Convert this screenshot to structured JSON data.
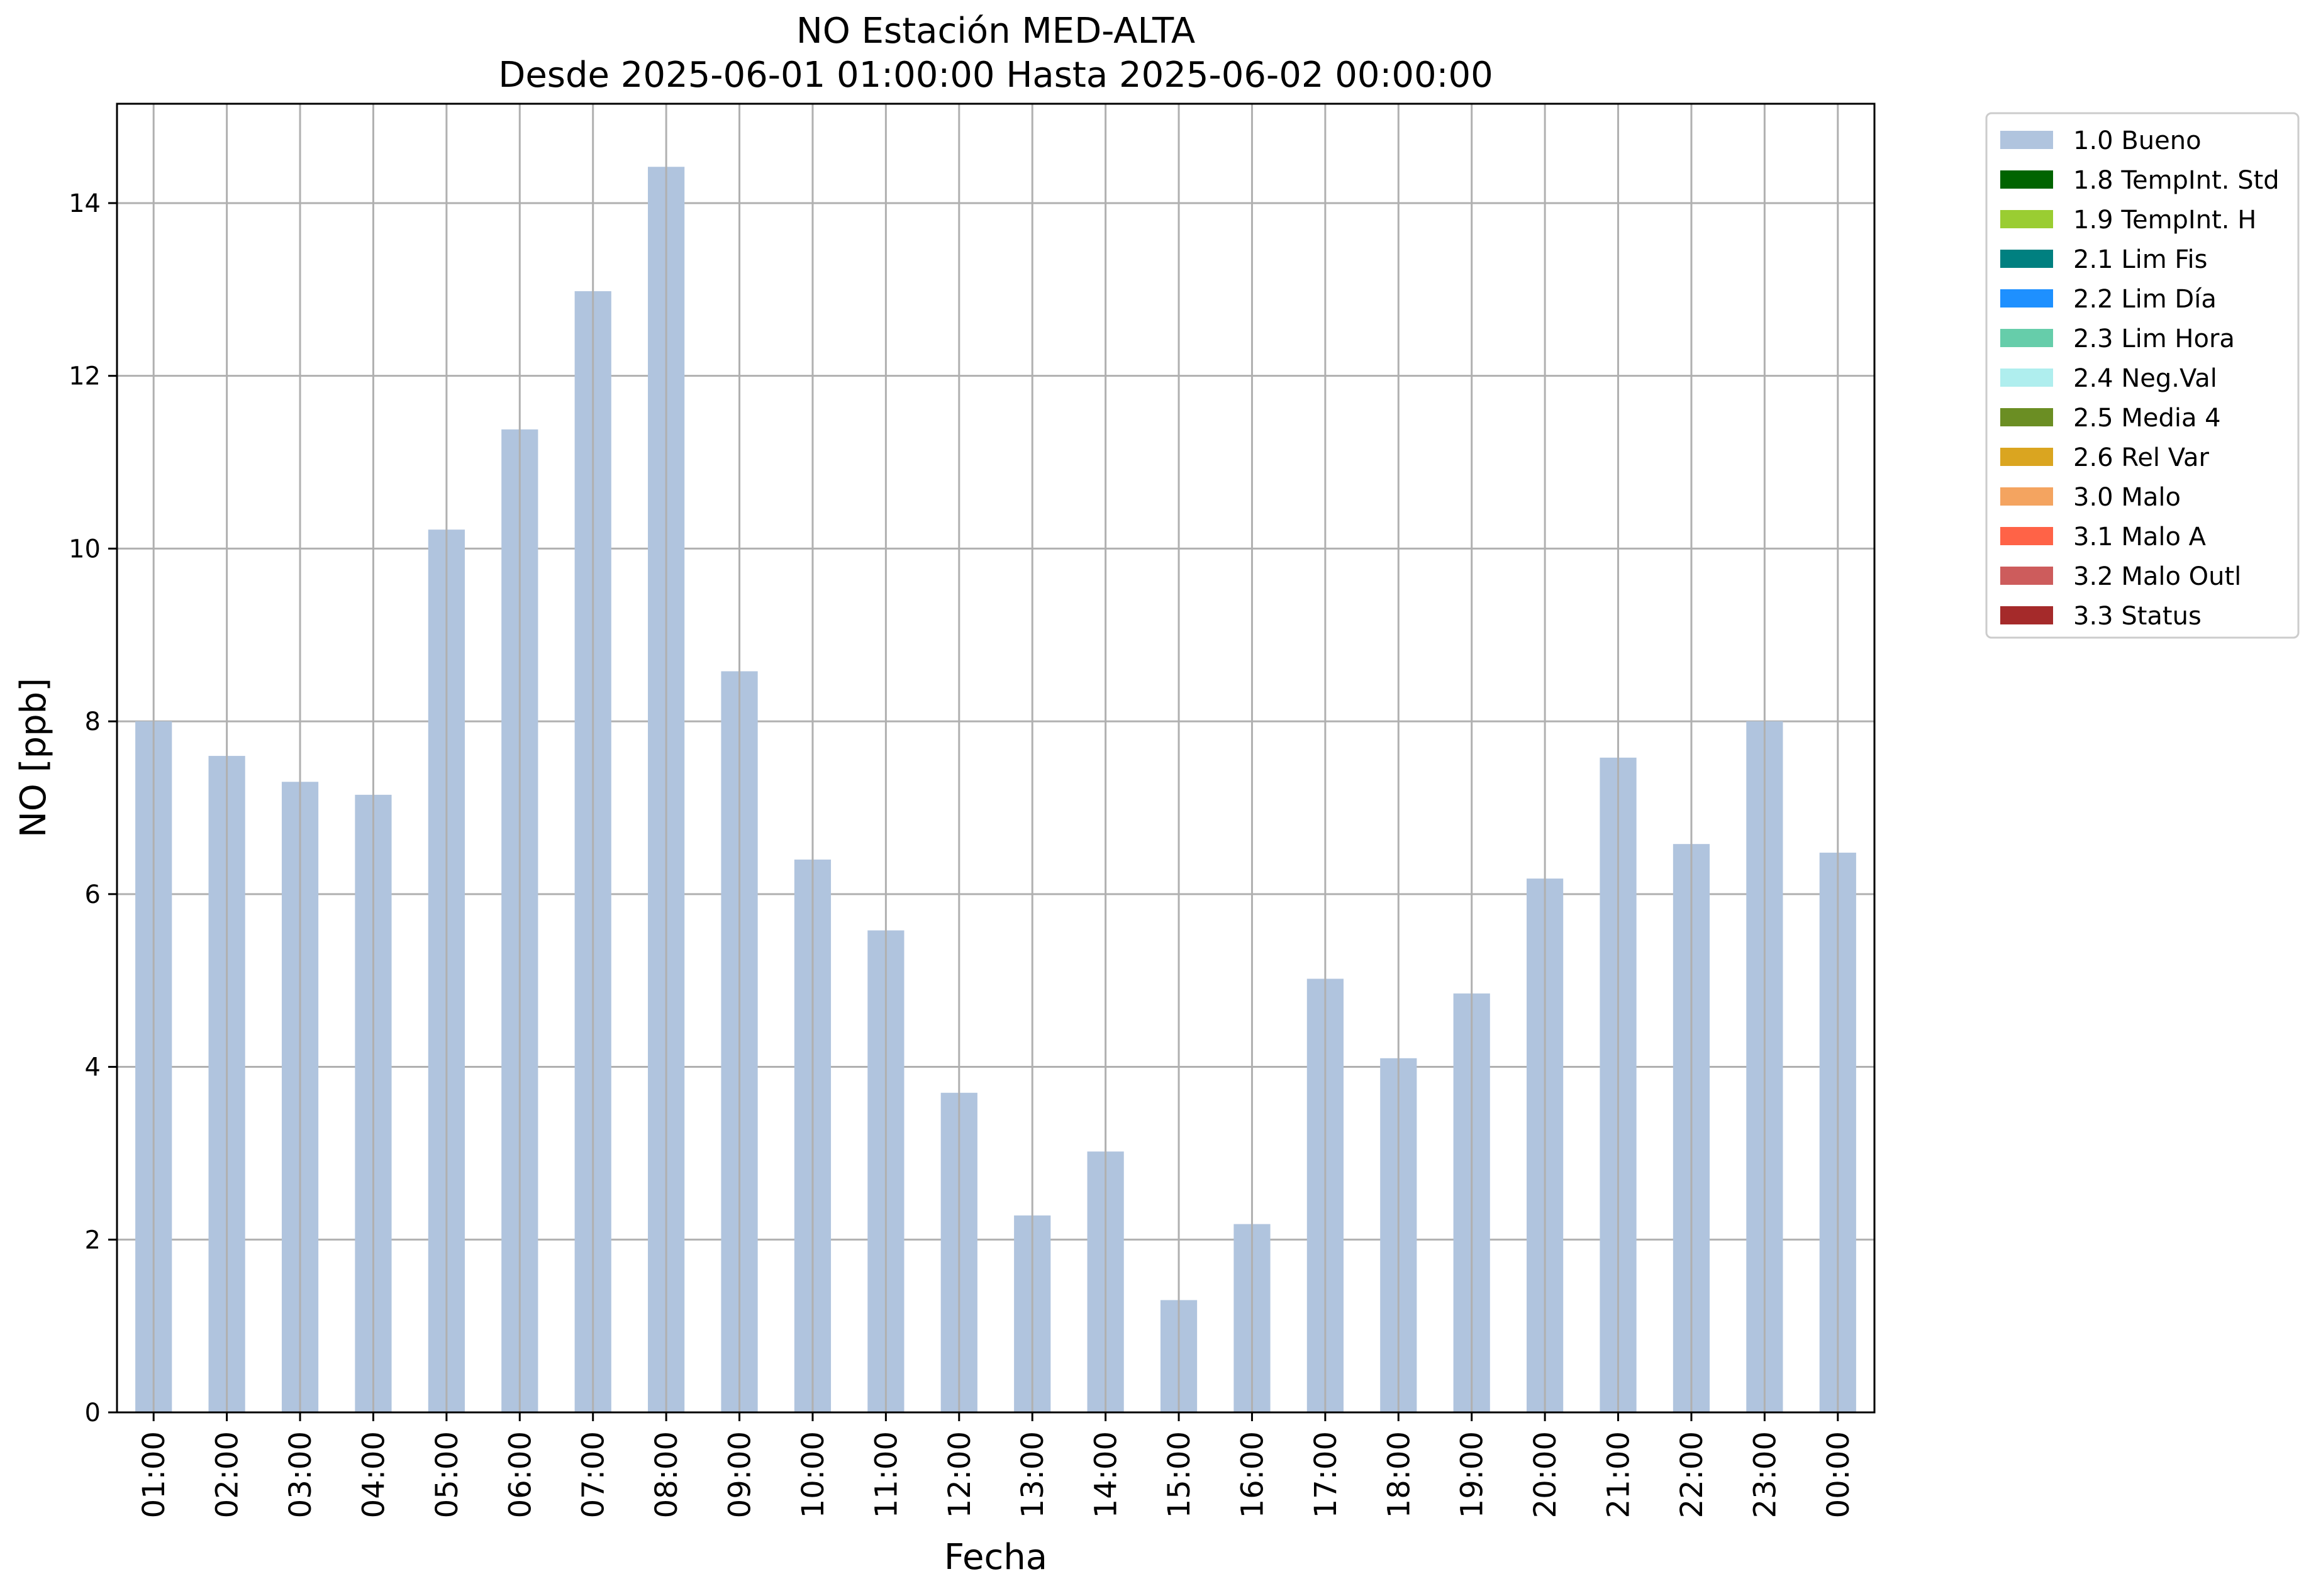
{
  "chart_data": {
    "type": "bar",
    "title_line1": "NO Estación MED-ALTA",
    "title_line2": "Desde 2025-06-01 01:00:00 Hasta 2025-06-02 00:00:00",
    "xlabel": "Fecha",
    "ylabel": "NO [ppb]",
    "ylim": [
      0,
      15.15
    ],
    "yticks": [
      0,
      2,
      4,
      6,
      8,
      10,
      12,
      14
    ],
    "grid": true,
    "legend_position": "outside right, top",
    "bar_color": "#b0c4de",
    "categories": [
      "01:00",
      "02:00",
      "03:00",
      "04:00",
      "05:00",
      "06:00",
      "07:00",
      "08:00",
      "09:00",
      "10:00",
      "11:00",
      "12:00",
      "13:00",
      "14:00",
      "15:00",
      "16:00",
      "17:00",
      "18:00",
      "19:00",
      "20:00",
      "21:00",
      "22:00",
      "23:00",
      "00:00"
    ],
    "series": [
      {
        "name": "1.0 Bueno",
        "values": [
          8.0,
          7.6,
          7.3,
          7.15,
          10.22,
          11.38,
          12.98,
          14.42,
          8.58,
          6.4,
          5.58,
          3.7,
          2.28,
          3.02,
          1.3,
          2.18,
          5.02,
          4.1,
          4.85,
          6.18,
          7.58,
          6.58,
          8.0,
          6.48
        ]
      }
    ],
    "legend": [
      {
        "label": "1.0 Bueno",
        "color": "#b0c4de"
      },
      {
        "label": "1.8 TempInt. Std",
        "color": "#006400"
      },
      {
        "label": "1.9 TempInt. H",
        "color": "#9acd32"
      },
      {
        "label": "2.1 Lim Fis",
        "color": "#008080"
      },
      {
        "label": "2.2 Lim Día",
        "color": "#1e90ff"
      },
      {
        "label": "2.3 Lim Hora",
        "color": "#66cdaa"
      },
      {
        "label": "2.4 Neg.Val",
        "color": "#afeeee"
      },
      {
        "label": "2.5 Media 4",
        "color": "#6b8e23"
      },
      {
        "label": "2.6 Rel Var",
        "color": "#daa520"
      },
      {
        "label": "3.0 Malo",
        "color": "#f4a460"
      },
      {
        "label": "3.1 Malo A",
        "color": "#ff6347"
      },
      {
        "label": "3.2 Malo Outl",
        "color": "#cd5c5c"
      },
      {
        "label": "3.3 Status",
        "color": "#a52a2a"
      }
    ]
  }
}
